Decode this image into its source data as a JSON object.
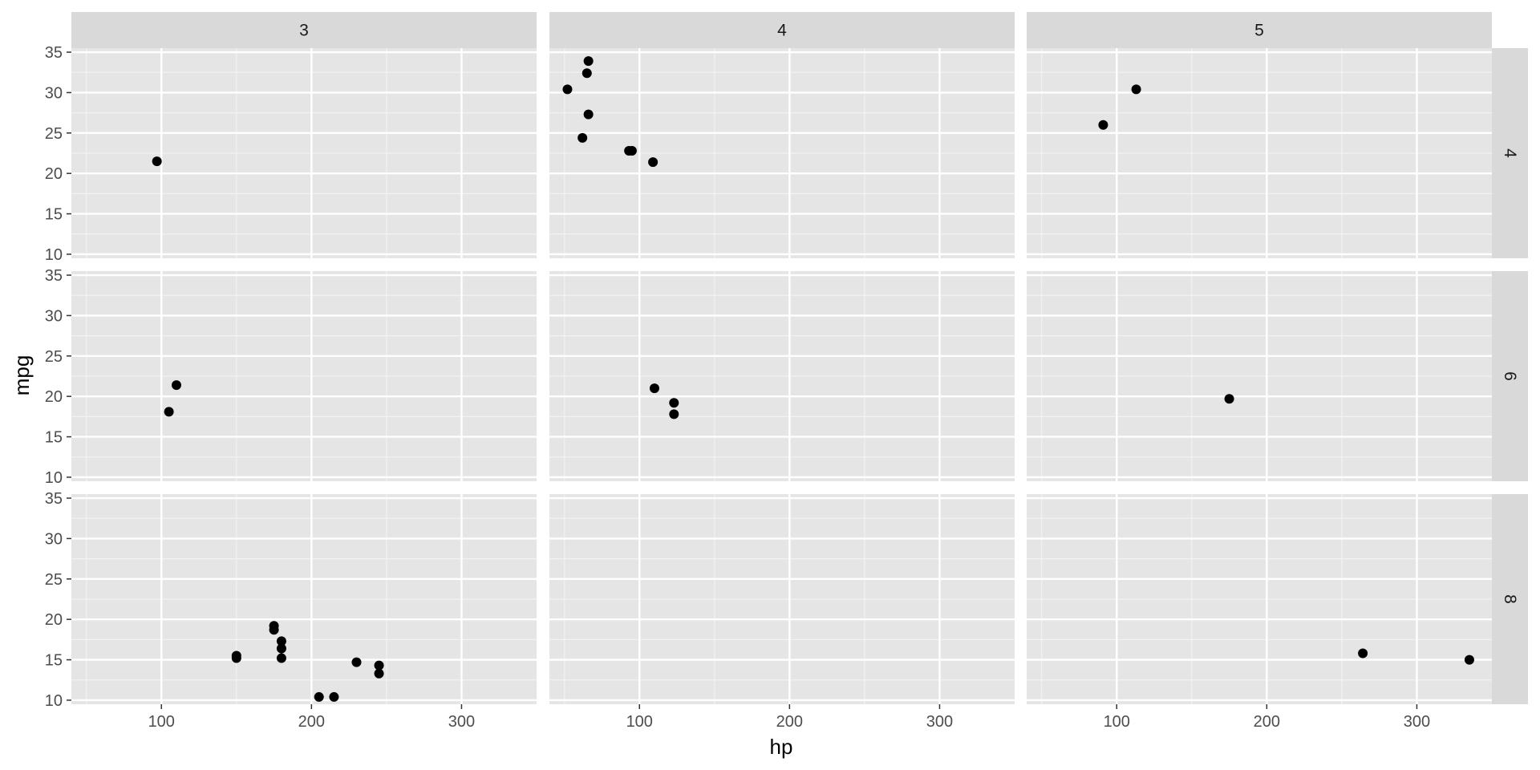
{
  "chart_data": {
    "type": "scatter",
    "facet_layout": "grid",
    "col_facet_labels": [
      "3",
      "4",
      "5"
    ],
    "row_facet_labels": [
      "4",
      "6",
      "8"
    ],
    "xlabel": "hp",
    "ylabel": "mpg",
    "xlim": [
      40,
      350
    ],
    "ylim": [
      9.5,
      35.5
    ],
    "x_ticks": [
      100,
      200,
      300
    ],
    "y_ticks": [
      10,
      15,
      20,
      25,
      30,
      35
    ],
    "grid": true,
    "panels": [
      {
        "row": "4",
        "col": "3",
        "points": [
          [
            97,
            21.5
          ]
        ]
      },
      {
        "row": "4",
        "col": "4",
        "points": [
          [
            66,
            33.9
          ],
          [
            65,
            32.4
          ],
          [
            52,
            30.4
          ],
          [
            66,
            27.3
          ],
          [
            62,
            24.4
          ],
          [
            93,
            22.8
          ],
          [
            95,
            22.8
          ],
          [
            109,
            21.4
          ]
        ]
      },
      {
        "row": "4",
        "col": "5",
        "points": [
          [
            91,
            26.0
          ],
          [
            113,
            30.4
          ]
        ]
      },
      {
        "row": "6",
        "col": "3",
        "points": [
          [
            110,
            21.4
          ],
          [
            105,
            18.1
          ]
        ]
      },
      {
        "row": "6",
        "col": "4",
        "points": [
          [
            110,
            21.0
          ],
          [
            123,
            19.2
          ],
          [
            123,
            17.8
          ]
        ]
      },
      {
        "row": "6",
        "col": "5",
        "points": [
          [
            175,
            19.7
          ]
        ]
      },
      {
        "row": "8",
        "col": "3",
        "points": [
          [
            175,
            18.7
          ],
          [
            175,
            19.2
          ],
          [
            180,
            17.3
          ],
          [
            180,
            16.4
          ],
          [
            180,
            15.2
          ],
          [
            150,
            15.5
          ],
          [
            150,
            15.2
          ],
          [
            230,
            14.7
          ],
          [
            245,
            14.3
          ],
          [
            245,
            13.3
          ],
          [
            205,
            10.4
          ],
          [
            215,
            10.4
          ]
        ]
      },
      {
        "row": "8",
        "col": "4",
        "points": []
      },
      {
        "row": "8",
        "col": "5",
        "points": [
          [
            264,
            15.8
          ],
          [
            335,
            15.0
          ]
        ]
      }
    ]
  }
}
